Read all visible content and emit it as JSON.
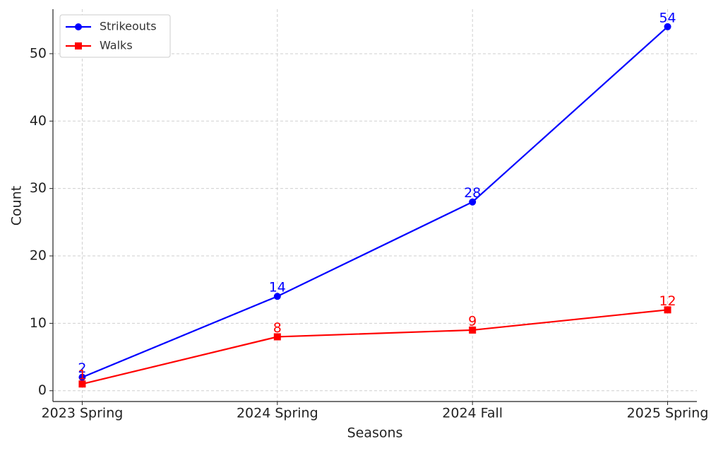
{
  "chart_data": {
    "type": "line",
    "x_label": "Seasons",
    "y_label": "Count",
    "categories": [
      "2023 Spring",
      "2024 Spring",
      "2024 Fall",
      "2025 Spring"
    ],
    "series": [
      {
        "name": "Strikeouts",
        "color": "#0000ff",
        "marker": "circle",
        "values": [
          2,
          14,
          28,
          54
        ]
      },
      {
        "name": "Walks",
        "color": "#ff0000",
        "marker": "square",
        "values": [
          1,
          8,
          9,
          12
        ]
      }
    ],
    "ylim": [
      -1.6,
      56.6
    ],
    "yticks": [
      0,
      10,
      20,
      30,
      40,
      50
    ],
    "grid": true,
    "legend": "upper-left",
    "data_labels": true
  }
}
